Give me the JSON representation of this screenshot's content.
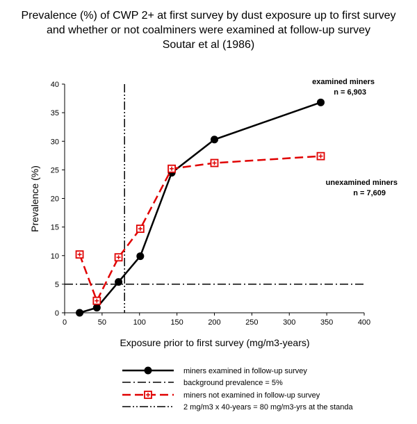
{
  "chart_data": {
    "type": "line",
    "title": [
      "Prevalence (%) of CWP 2+ at first survey by dust exposure up to first survey",
      "and whether or not coalminers were examined at follow-up survey",
      "Soutar et al (1986)"
    ],
    "xlabel": "Exposure prior to first survey (mg/m3-years)",
    "ylabel": "Prevalence (%)",
    "xlim": [
      0,
      400
    ],
    "ylim": [
      0,
      40
    ],
    "x_ticks": [
      0,
      50,
      100,
      150,
      200,
      250,
      300,
      350,
      400
    ],
    "y_ticks": [
      0,
      5,
      10,
      15,
      20,
      25,
      30,
      35,
      40
    ],
    "grid": false,
    "legend_position": "bottom",
    "series": [
      {
        "name": "miners examined in follow-up survey",
        "color": "#000000",
        "line_style": "solid",
        "marker": "filled-circle",
        "x": [
          20,
          43,
          72,
          101,
          143,
          200,
          342
        ],
        "y": [
          0.0,
          0.9,
          5.4,
          9.9,
          24.5,
          30.3,
          36.8
        ]
      },
      {
        "name": "miners not examined in follow-up survey",
        "color": "#e00000",
        "line_style": "dashed",
        "marker": "square-plus",
        "x": [
          20,
          43,
          72,
          101,
          143,
          200,
          342
        ],
        "y": [
          10.2,
          2.1,
          9.7,
          14.7,
          25.2,
          26.2,
          27.4
        ]
      }
    ],
    "reference_lines": [
      {
        "name": "background prevalence = 5%",
        "orientation": "horizontal",
        "value": 5,
        "color": "#000000",
        "line_style": "dash-dot"
      },
      {
        "name": "2 mg/m3 x 40-years = 80 mg/m3-yrs at the standa",
        "orientation": "vertical",
        "value": 80,
        "color": "#000000",
        "line_style": "dash-dot-dot"
      }
    ],
    "annotations": [
      {
        "lines": [
          "examined miners",
          "n = 6,903"
        ],
        "x": 342,
        "y": 37.5
      },
      {
        "lines": [
          "unexamined miners",
          "n = 7,609"
        ],
        "x": 342,
        "y": 22.5
      }
    ]
  }
}
